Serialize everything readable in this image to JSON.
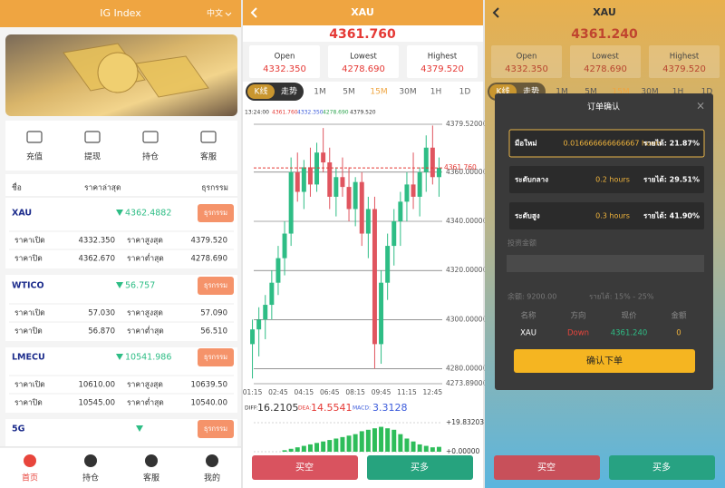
{
  "home": {
    "header": {
      "title": "IG Index",
      "lang": "中文"
    },
    "menu": [
      "充值",
      "提现",
      "持仓",
      "客服"
    ],
    "list_header": [
      "ชื่อ",
      "ราคาล่าสุด",
      "ธุรกรรม"
    ],
    "items": [
      {
        "name": "XAU",
        "price": "4362.4882",
        "button": "ธุรกรรม",
        "rows": [
          [
            "ราคาเปิด",
            "4332.350",
            "ราคาสูงสุด",
            "4379.520"
          ],
          [
            "ราคาปิด",
            "4362.670",
            "ราคาต่ำสุด",
            "4278.690"
          ]
        ]
      },
      {
        "name": "WTICO",
        "price": "56.757",
        "button": "ธุรกรรม",
        "rows": [
          [
            "ราคาเปิด",
            "57.030",
            "ราคาสูงสุด",
            "57.090"
          ],
          [
            "ราคาปิด",
            "56.870",
            "ราคาต่ำสุด",
            "56.510"
          ]
        ]
      },
      {
        "name": "LMECU",
        "price": "10541.986",
        "button": "ธุรกรรม",
        "rows": [
          [
            "ราคาเปิด",
            "10610.00",
            "ราคาสูงสุด",
            "10639.50"
          ],
          [
            "ราคาปิด",
            "10545.00",
            "ราคาต่ำสุด",
            "10540.00"
          ]
        ]
      },
      {
        "name": "5G",
        "button": "ธุรกรรม"
      }
    ],
    "nav": [
      "首页",
      "持仓",
      "客服",
      "我的"
    ]
  },
  "detail": {
    "title": "XAU",
    "price": "4361.760",
    "stats": [
      {
        "label": "Open",
        "value": "4332.350"
      },
      {
        "label": "Lowest",
        "value": "4278.690"
      },
      {
        "label": "Highest",
        "value": "4379.520"
      }
    ],
    "tabs": [
      "K线",
      "走势",
      "1M",
      "5M",
      "15M",
      "30M",
      "1H",
      "1D"
    ],
    "legend": [
      "13:24:00",
      "4361.760",
      "4332.350",
      "4278.690",
      "4379.520"
    ],
    "chart_data": {
      "type": "candlestick",
      "categories": [
        "01:15",
        null,
        null,
        null,
        "02:45",
        null,
        null,
        null,
        "04:15",
        null,
        null,
        null,
        "06:45",
        null,
        null,
        null,
        "08:15",
        null,
        null,
        null,
        "09:45",
        null,
        null,
        null,
        "11:15",
        null,
        null,
        null,
        "12:45",
        null
      ],
      "open": [
        4290,
        4296,
        4300,
        4306,
        4315,
        4325,
        4335,
        4360,
        4352,
        4362,
        4355,
        4368,
        4364,
        4350,
        4358,
        4354,
        4345,
        4356,
        4335,
        4345,
        4290,
        4315,
        4330,
        4340,
        4348,
        4355,
        4350,
        4360,
        4370,
        4358
      ],
      "high": [
        4300,
        4305,
        4310,
        4320,
        4330,
        4340,
        4366,
        4368,
        4365,
        4370,
        4372,
        4378,
        4370,
        4362,
        4366,
        4362,
        4358,
        4360,
        4350,
        4350,
        4320,
        4335,
        4345,
        4352,
        4360,
        4368,
        4362,
        4375,
        4379,
        4366
      ],
      "low": [
        4276,
        4285,
        4292,
        4300,
        4310,
        4318,
        4330,
        4348,
        4345,
        4350,
        4352,
        4360,
        4345,
        4342,
        4350,
        4340,
        4338,
        4330,
        4325,
        4280,
        4282,
        4308,
        4322,
        4330,
        4340,
        4345,
        4342,
        4352,
        4355,
        4350
      ],
      "close": [
        4296,
        4300,
        4306,
        4315,
        4325,
        4335,
        4360,
        4352,
        4362,
        4355,
        4368,
        4364,
        4350,
        4358,
        4354,
        4345,
        4356,
        4335,
        4345,
        4290,
        4315,
        4330,
        4340,
        4348,
        4355,
        4350,
        4360,
        4370,
        4358,
        4361.76
      ],
      "up_color": "#2ebd85",
      "down_color": "#e0555f",
      "ylim": [
        4273.89,
        4379.52
      ],
      "yticks": [
        {
          "value": 4379.52,
          "label": "4379.52000"
        },
        {
          "value": 4360,
          "label": "4360.00000"
        },
        {
          "value": 4340,
          "label": "4340.00000"
        },
        {
          "value": 4320,
          "label": "4320.00000"
        },
        {
          "value": 4300,
          "label": "4300.00000"
        },
        {
          "value": 4280,
          "label": "4280.00000"
        },
        {
          "value": 4273.89,
          "label": "4273.89000"
        }
      ],
      "last_price": {
        "value": 4361.76,
        "label": "4361.760"
      },
      "grid": true
    },
    "macd": {
      "labels": [
        "DIFF:",
        "16.2105",
        "DEA:",
        "14.5541",
        "MACD:",
        "3.3128"
      ],
      "chart": {
        "type": "bar",
        "color": "#2ebd5a",
        "values": [
          0,
          0,
          0,
          0,
          0,
          1,
          2,
          3,
          4,
          5,
          6,
          7,
          8,
          9,
          10,
          11,
          12,
          14,
          15,
          16,
          17,
          16,
          15,
          12,
          9,
          7,
          5,
          4,
          3,
          3.3128
        ],
        "ylim": [
          0,
          19.83203
        ],
        "yticks": [
          {
            "value": 19.83203,
            "label": "+19.83203"
          },
          {
            "value": 0,
            "label": "+0.00000"
          }
        ]
      }
    },
    "buttons": [
      "买空",
      "买多"
    ]
  },
  "order": {
    "title": "XAU",
    "price": "4361.240",
    "modal": {
      "title": "订单确认",
      "close": "×",
      "options": [
        {
          "level": "มือใหม่",
          "duration": "0.016666666666667 hours",
          "profit": "รายได้: 21.87%"
        },
        {
          "level": "ระดับกลาง",
          "duration": "0.2 hours",
          "profit": "รายได้: 29.51%"
        },
        {
          "level": "ระดับสูง",
          "duration": "0.3 hours",
          "profit": "รายได้: 41.90%"
        }
      ],
      "amount_label": "投资金额",
      "balance": "余额: 9200.00",
      "range": "รายได้: 15% - 25%",
      "table": {
        "headers": [
          "名称",
          "方向",
          "现价",
          "金额"
        ],
        "row": [
          "XAU",
          "Down",
          "4361.240",
          "0"
        ]
      },
      "confirm": "确认下单"
    }
  }
}
